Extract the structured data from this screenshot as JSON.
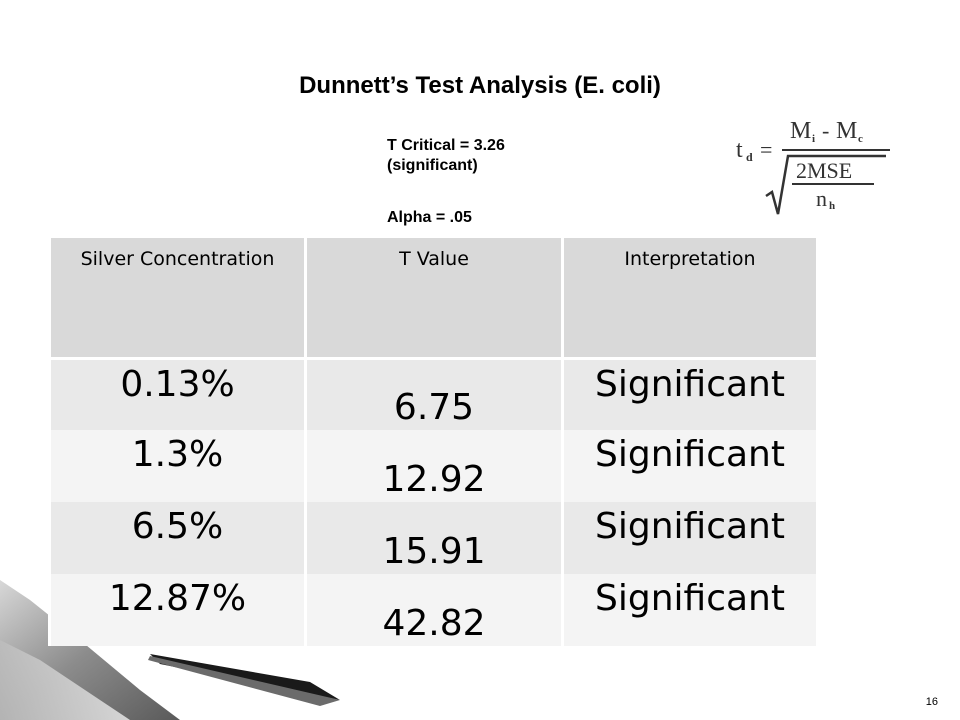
{
  "slide": {
    "title": "Dunnett’s Test Analysis (E. coli)",
    "t_critical": "T Critical  = 3.26",
    "significant_note": "(significant)",
    "alpha": "Alpha = .05",
    "page_number": "16"
  },
  "formula": {
    "lhs_t": "t",
    "lhs_sub": "d",
    "equals": "=",
    "m": "M",
    "sub_i": "i",
    "minus": "-",
    "sub_c": "c",
    "mse": "2MSE",
    "n": "n",
    "sub_h": "h"
  },
  "table": {
    "headers": [
      "Silver Concentration",
      "T Value",
      "Interpretation"
    ],
    "rows": [
      {
        "concentration": "0.13%",
        "t_value": "6.75",
        "interpretation": "Significant"
      },
      {
        "concentration": "1.3%",
        "t_value": "12.92",
        "interpretation": "Significant"
      },
      {
        "concentration": "6.5%",
        "t_value": "15.91",
        "interpretation": "Significant"
      },
      {
        "concentration": "12.87%",
        "t_value": "42.82",
        "interpretation": "Significant"
      }
    ]
  }
}
